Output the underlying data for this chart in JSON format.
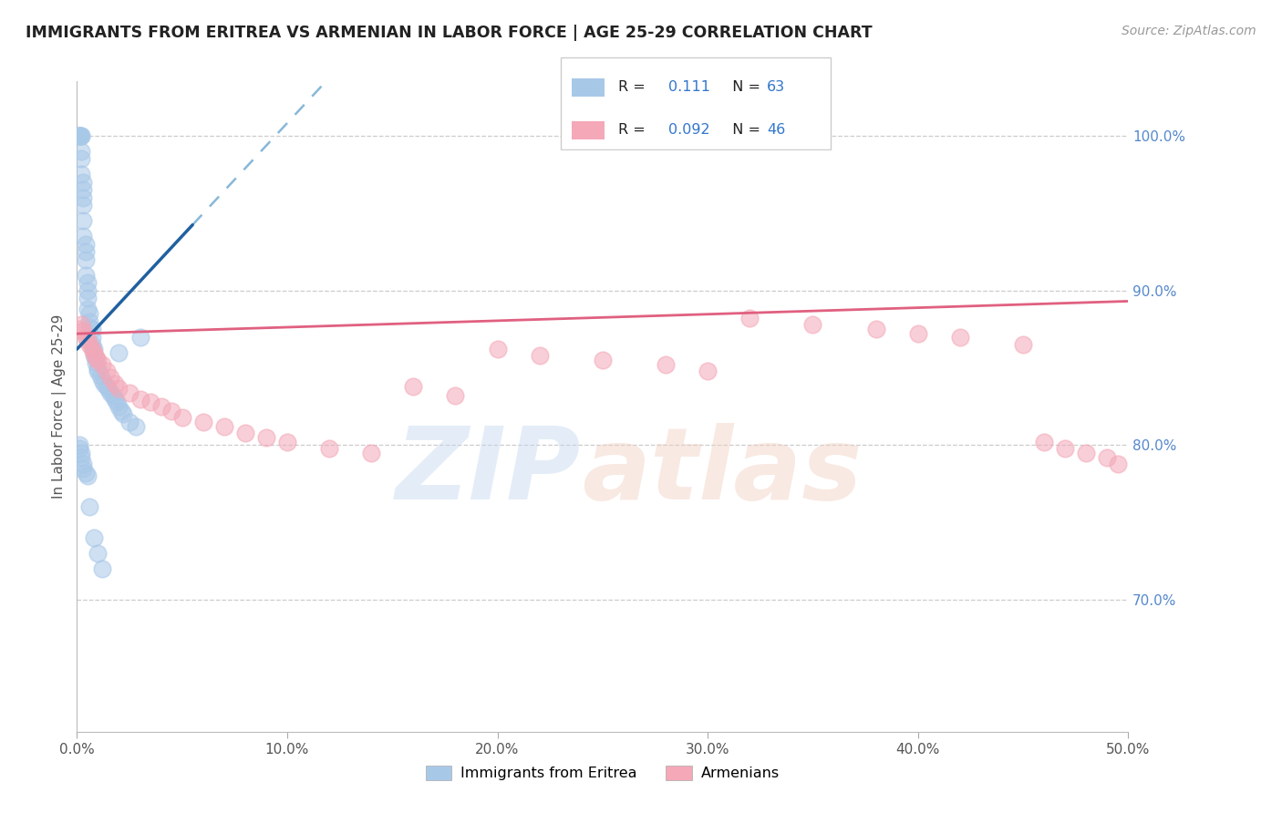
{
  "title": "IMMIGRANTS FROM ERITREA VS ARMENIAN IN LABOR FORCE | AGE 25-29 CORRELATION CHART",
  "source_text": "Source: ZipAtlas.com",
  "ylabel": "In Labor Force | Age 25-29",
  "xlim": [
    0.0,
    0.5
  ],
  "ylim": [
    0.615,
    1.035
  ],
  "xtick_vals": [
    0.0,
    0.1,
    0.2,
    0.3,
    0.4,
    0.5
  ],
  "xtick_labels": [
    "0.0%",
    "10.0%",
    "20.0%",
    "30.0%",
    "40.0%",
    "50.0%"
  ],
  "ytick_vals": [
    0.7,
    0.8,
    0.9,
    1.0
  ],
  "ytick_labels": [
    "70.0%",
    "80.0%",
    "90.0%",
    "100.0%"
  ],
  "eritrea_R": 0.111,
  "eritrea_N": 63,
  "armenian_R": 0.092,
  "armenian_N": 46,
  "eritrea_color": "#a8c8e8",
  "armenian_color": "#f4a8b8",
  "eritrea_line_color": "#2060a0",
  "eritrea_dash_color": "#88b8d8",
  "armenian_line_color": "#e06080",
  "grid_color": "#cccccc",
  "eritrea_x": [
    0.001,
    0.001,
    0.001,
    0.001,
    0.002,
    0.002,
    0.002,
    0.002,
    0.002,
    0.003,
    0.003,
    0.003,
    0.003,
    0.003,
    0.003,
    0.004,
    0.004,
    0.004,
    0.004,
    0.005,
    0.005,
    0.005,
    0.005,
    0.006,
    0.006,
    0.006,
    0.007,
    0.007,
    0.007,
    0.008,
    0.008,
    0.009,
    0.009,
    0.01,
    0.01,
    0.011,
    0.012,
    0.013,
    0.014,
    0.015,
    0.016,
    0.017,
    0.018,
    0.019,
    0.02,
    0.021,
    0.022,
    0.025,
    0.028,
    0.03,
    0.001,
    0.001,
    0.002,
    0.002,
    0.003,
    0.003,
    0.004,
    0.005,
    0.006,
    0.008,
    0.01,
    0.012,
    0.02
  ],
  "eritrea_y": [
    1.0,
    1.0,
    1.0,
    1.0,
    1.0,
    1.0,
    0.99,
    0.985,
    0.975,
    0.97,
    0.965,
    0.96,
    0.955,
    0.945,
    0.935,
    0.93,
    0.925,
    0.92,
    0.91,
    0.905,
    0.9,
    0.895,
    0.888,
    0.885,
    0.88,
    0.876,
    0.875,
    0.87,
    0.865,
    0.862,
    0.858,
    0.856,
    0.853,
    0.85,
    0.848,
    0.845,
    0.842,
    0.84,
    0.838,
    0.836,
    0.834,
    0.832,
    0.83,
    0.828,
    0.825,
    0.822,
    0.82,
    0.815,
    0.812,
    0.87,
    0.8,
    0.798,
    0.795,
    0.792,
    0.788,
    0.785,
    0.782,
    0.78,
    0.76,
    0.74,
    0.73,
    0.72,
    0.86
  ],
  "armenian_x": [
    0.001,
    0.002,
    0.003,
    0.004,
    0.005,
    0.006,
    0.007,
    0.008,
    0.009,
    0.01,
    0.012,
    0.014,
    0.016,
    0.018,
    0.02,
    0.025,
    0.03,
    0.035,
    0.04,
    0.045,
    0.05,
    0.06,
    0.07,
    0.08,
    0.09,
    0.1,
    0.12,
    0.14,
    0.16,
    0.18,
    0.2,
    0.22,
    0.25,
    0.28,
    0.3,
    0.32,
    0.35,
    0.38,
    0.4,
    0.42,
    0.45,
    0.46,
    0.47,
    0.48,
    0.49,
    0.495
  ],
  "armenian_y": [
    0.875,
    0.878,
    0.874,
    0.87,
    0.868,
    0.865,
    0.862,
    0.86,
    0.857,
    0.855,
    0.852,
    0.848,
    0.844,
    0.84,
    0.837,
    0.834,
    0.83,
    0.828,
    0.825,
    0.822,
    0.818,
    0.815,
    0.812,
    0.808,
    0.805,
    0.802,
    0.798,
    0.795,
    0.838,
    0.832,
    0.862,
    0.858,
    0.855,
    0.852,
    0.848,
    0.882,
    0.878,
    0.875,
    0.872,
    0.87,
    0.865,
    0.802,
    0.798,
    0.795,
    0.792,
    0.788
  ]
}
